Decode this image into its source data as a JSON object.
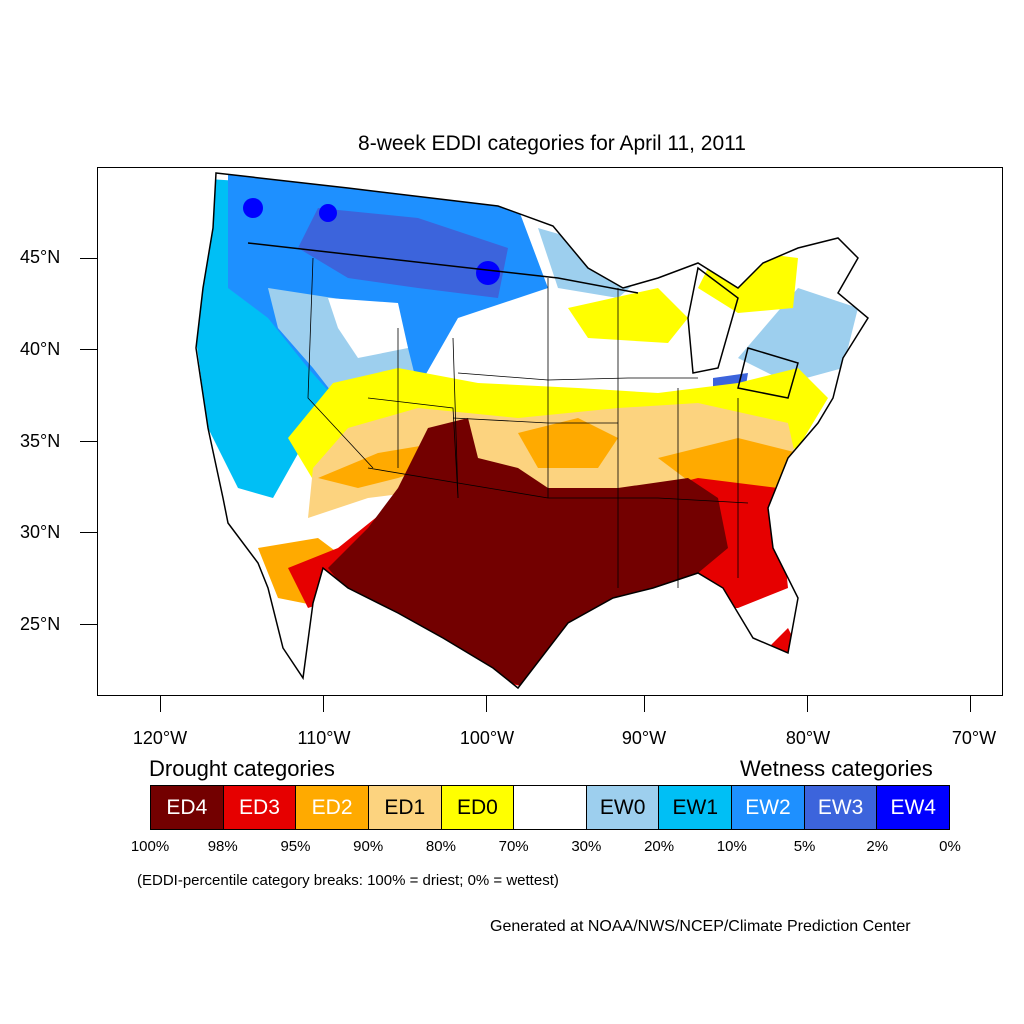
{
  "title": "8-week EDDI categories for April 11, 2011",
  "latitude_labels": [
    "45°N",
    "40°N",
    "35°N",
    "30°N",
    "25°N"
  ],
  "longitude_labels": [
    "120°W",
    "110°W",
    "100°W",
    "90°W",
    "80°W",
    "70°W"
  ],
  "legend": {
    "drought_heading": "Drought categories",
    "wetness_heading": "Wetness categories",
    "categories": [
      {
        "label": "ED4",
        "color": "#730000",
        "text_color": "#ffffff"
      },
      {
        "label": "ED3",
        "color": "#e60000",
        "text_color": "#ffffff"
      },
      {
        "label": "ED2",
        "color": "#ffaa00",
        "text_color": "#ffffff"
      },
      {
        "label": "ED1",
        "color": "#fcd37f",
        "text_color": "#000000"
      },
      {
        "label": "ED0",
        "color": "#ffff00",
        "text_color": "#000000"
      },
      {
        "label": "",
        "color": "#ffffff",
        "text_color": "#000000"
      },
      {
        "label": "EW0",
        "color": "#9dcfee",
        "text_color": "#000000"
      },
      {
        "label": "EW1",
        "color": "#00bff5",
        "text_color": "#000000"
      },
      {
        "label": "EW2",
        "color": "#1e90ff",
        "text_color": "#ffffff"
      },
      {
        "label": "EW3",
        "color": "#3c64dc",
        "text_color": "#ffffff"
      },
      {
        "label": "EW4",
        "color": "#0000ff",
        "text_color": "#ffffff"
      }
    ],
    "breaks": [
      "100%",
      "98%",
      "95%",
      "90%",
      "80%",
      "70%",
      "30%",
      "20%",
      "10%",
      "5%",
      "2%",
      "0%"
    ],
    "breaks_note": "(EDDI-percentile category breaks: 100% = driest; 0% = wettest)"
  },
  "credit": "Generated at NOAA/NWS/NCEP/Climate Prediction Center"
}
